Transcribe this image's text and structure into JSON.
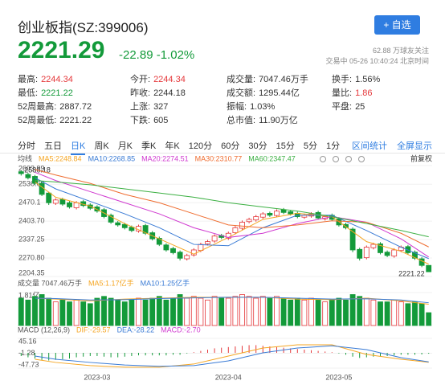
{
  "header": {
    "title": "创业板指(SZ:399006)",
    "button": "+ 自选",
    "price": "2221.29",
    "change": "-22.89",
    "change_pct": "-1.02%",
    "followers": "62.88 万球友关注",
    "status": "交易中 05-26 10:40:24 北京时间",
    "up_color": "#e5383b",
    "down_color": "#139a3a"
  },
  "stats": [
    [
      {
        "label": "最高:",
        "value": "2244.34",
        "color": "#e5383b"
      },
      {
        "label": "今开:",
        "value": "2244.34",
        "color": "#e5383b"
      },
      {
        "label": "成交量:",
        "value": "7047.46万手"
      },
      {
        "label": "换手:",
        "value": "1.56%"
      }
    ],
    [
      {
        "label": "最低:",
        "value": "2221.22",
        "color": "#139a3a"
      },
      {
        "label": "昨收:",
        "value": "2244.18"
      },
      {
        "label": "成交额:",
        "value": "1295.44亿"
      },
      {
        "label": "量比:",
        "value": "1.86",
        "color": "#e5383b"
      }
    ],
    [
      {
        "label": "52周最高:",
        "value": "2887.72"
      },
      {
        "label": "上涨:",
        "value": "327"
      },
      {
        "label": "振幅:",
        "value": "1.03%"
      },
      {
        "label": "平盘:",
        "value": "25"
      }
    ],
    [
      {
        "label": "52周最低:",
        "value": "2221.22"
      },
      {
        "label": "下跌:",
        "value": "605"
      },
      {
        "label": "总市值:",
        "value": "11.90万亿"
      }
    ]
  ],
  "tabs": {
    "items": [
      "分时",
      "五日",
      "日K",
      "周K",
      "月K",
      "季K",
      "年K",
      "120分",
      "60分",
      "30分",
      "15分",
      "5分",
      "1分"
    ],
    "active": 2,
    "links": [
      "区间统计",
      "全屏显示"
    ]
  },
  "chart_data": [
    {
      "type": "candlestick",
      "legend_title": "均线",
      "adjust": "前复权",
      "up_color": "#e5383b",
      "down_color": "#139a3a",
      "grid": true,
      "ylim": [
        2204.35,
        2603.99
      ],
      "yticks": [
        2603.99,
        {
          "value": 2536.6,
          "label": "2536.60"
        },
        {
          "value": 2470.15,
          "label": "2470.1"
        },
        {
          "value": 2403.7,
          "label": "2403.70"
        },
        2337.25,
        {
          "value": 2270.8,
          "label": "2270.80"
        },
        2204.35
      ],
      "candles": {
        "open": [
          2582,
          2572,
          2565,
          2540,
          2505,
          2468,
          2482,
          2470,
          2452,
          2474,
          2462,
          2455,
          2445,
          2425,
          2398,
          2392,
          2382,
          2368,
          2388,
          2362,
          2342,
          2318,
          2305,
          2292,
          2268,
          2282,
          2298,
          2322,
          2332,
          2352,
          2342,
          2362,
          2378,
          2402,
          2408,
          2418,
          2432,
          2424,
          2445,
          2438,
          2432,
          2418,
          2422,
          2435,
          2412,
          2425,
          2412,
          2392,
          2375,
          2302,
          2272,
          2308,
          2322,
          2292,
          2278,
          2298,
          2312,
          2292,
          2268,
          2244.34
        ],
        "high": [
          2586.18,
          2578,
          2570,
          2546,
          2510,
          2486,
          2488,
          2476,
          2476,
          2480,
          2468,
          2461,
          2451,
          2431,
          2404,
          2398,
          2388,
          2391,
          2394,
          2368,
          2348,
          2324,
          2311,
          2298,
          2286,
          2306,
          2326,
          2336,
          2356,
          2358,
          2366,
          2386,
          2406,
          2416,
          2426,
          2436,
          2438,
          2446,
          2451,
          2444,
          2438,
          2431,
          2436,
          2441,
          2426,
          2431,
          2418,
          2398,
          2381,
          2308,
          2316,
          2326,
          2328,
          2298,
          2306,
          2316,
          2318,
          2298,
          2274,
          2244.34
        ],
        "low": [
          2568,
          2554,
          2534,
          2494,
          2462,
          2462,
          2459,
          2449,
          2446,
          2454,
          2444,
          2434,
          2414,
          2394,
          2384,
          2374,
          2364,
          2362,
          2354,
          2334,
          2314,
          2294,
          2284,
          2262,
          2262,
          2276,
          2292,
          2316,
          2326,
          2339,
          2336,
          2356,
          2372,
          2396,
          2402,
          2412,
          2419,
          2418,
          2429,
          2424,
          2414,
          2412,
          2416,
          2409,
          2406,
          2404,
          2384,
          2374,
          2292,
          2262,
          2266,
          2302,
          2284,
          2274,
          2272,
          2292,
          2284,
          2264,
          2238,
          2221.22
        ],
        "close": [
          2575,
          2560,
          2540,
          2500,
          2470,
          2480,
          2465,
          2455,
          2470,
          2460,
          2450,
          2440,
          2420,
          2400,
          2390,
          2380,
          2370,
          2385,
          2360,
          2340,
          2320,
          2300,
          2290,
          2270,
          2280,
          2300,
          2320,
          2330,
          2350,
          2345,
          2360,
          2380,
          2400,
          2410,
          2420,
          2430,
          2425,
          2440,
          2435,
          2430,
          2420,
          2425,
          2430,
          2415,
          2420,
          2410,
          2390,
          2380,
          2300,
          2270,
          2310,
          2320,
          2290,
          2280,
          2300,
          2310,
          2290,
          2270,
          2244.18,
          2221.29
        ]
      },
      "series": [
        {
          "name": "MA5:2248.84",
          "color": "#f5a623",
          "x": [
            2,
            5,
            10,
            15,
            20,
            25,
            30,
            35,
            40,
            45,
            50,
            55,
            59
          ],
          "values": [
            2545,
            2490,
            2458,
            2395,
            2340,
            2285,
            2345,
            2410,
            2432,
            2420,
            2330,
            2295,
            2248.84
          ]
        },
        {
          "name": "MA10:2268.85",
          "color": "#3a7bd5",
          "x": [
            2,
            5,
            10,
            15,
            20,
            25,
            30,
            35,
            40,
            45,
            50,
            55,
            59
          ],
          "values": [
            2560,
            2520,
            2475,
            2430,
            2380,
            2320,
            2315,
            2380,
            2425,
            2425,
            2370,
            2310,
            2268.85
          ]
        },
        {
          "name": "MA20:2274.51",
          "color": "#d03ad0",
          "x": [
            2,
            5,
            10,
            15,
            20,
            25,
            30,
            35,
            40,
            45,
            50,
            55,
            59
          ],
          "values": [
            2580,
            2550,
            2510,
            2470,
            2430,
            2380,
            2345,
            2360,
            2395,
            2420,
            2400,
            2340,
            2274.51
          ]
        },
        {
          "name": "MA30:2310.77",
          "color": "#ef6c2f",
          "x": [
            2,
            5,
            10,
            15,
            20,
            25,
            30,
            35,
            40,
            45,
            50,
            55,
            59
          ],
          "values": [
            2590,
            2570,
            2540,
            2500,
            2470,
            2430,
            2390,
            2380,
            2390,
            2405,
            2400,
            2360,
            2310.77
          ]
        },
        {
          "name": "MA60:2347.47",
          "color": "#3cb043",
          "x": [
            2,
            5,
            10,
            15,
            20,
            25,
            30,
            35,
            40,
            45,
            50,
            55,
            59
          ],
          "values": [
            2550,
            2545,
            2535,
            2520,
            2505,
            2490,
            2470,
            2455,
            2440,
            2420,
            2395,
            2370,
            2347.47
          ]
        }
      ]
    },
    {
      "type": "volume",
      "title": "成交量 7047.46万手",
      "up_color": "#e5383b",
      "down_color": "#139a3a",
      "ylim": [
        0,
        1.81
      ],
      "yticks": [
        {
          "value": 1.81,
          "label": "1.81亿"
        }
      ],
      "values": [
        1.5,
        1.4,
        1.6,
        1.7,
        1.5,
        1.3,
        1.4,
        1.3,
        1.4,
        1.3,
        1.2,
        1.5,
        1.6,
        1.5,
        1.4,
        1.3,
        1.4,
        1.5,
        1.4,
        1.5,
        1.6,
        1.4,
        1.5,
        1.7,
        1.5,
        1.6,
        1.5,
        1.4,
        1.6,
        1.5,
        1.5,
        1.6,
        1.7,
        1.6,
        1.5,
        1.6,
        1.5,
        1.6,
        1.5,
        1.4,
        1.5,
        1.4,
        1.5,
        1.4,
        1.3,
        1.4,
        1.5,
        1.4,
        1.7,
        1.6,
        1.5,
        1.4,
        1.3,
        1.3,
        1.4,
        1.3,
        1.2,
        1.3,
        1.2,
        0.7047
      ],
      "series": [
        {
          "name": "MA5:1.17亿手",
          "color": "#f5a623",
          "x": [
            2,
            5,
            10,
            15,
            20,
            25,
            30,
            35,
            40,
            45,
            50,
            55,
            59
          ],
          "values": [
            1.5,
            1.45,
            1.35,
            1.45,
            1.5,
            1.55,
            1.55,
            1.55,
            1.45,
            1.42,
            1.5,
            1.35,
            1.17
          ]
        },
        {
          "name": "MA10:1.25亿手",
          "color": "#3a7bd5",
          "x": [
            2,
            5,
            10,
            15,
            20,
            25,
            30,
            35,
            40,
            45,
            50,
            55,
            59
          ],
          "values": [
            1.5,
            1.48,
            1.4,
            1.42,
            1.48,
            1.52,
            1.55,
            1.55,
            1.5,
            1.45,
            1.47,
            1.4,
            1.25
          ]
        }
      ]
    },
    {
      "type": "macd",
      "title": "MACD (12,26,9)",
      "up_color": "#e5383b",
      "down_color": "#139a3a",
      "ylim": [
        -47.73,
        45.16
      ],
      "yticks": [
        45.16,
        -1.28,
        -47.73
      ],
      "histogram": {
        "name": "MACD:-2.70",
        "color": "#d03ad0",
        "values": [
          -10,
          -14,
          -18,
          -22,
          -24,
          -22,
          -20,
          -18,
          -14,
          -12,
          -10,
          -10,
          -12,
          -14,
          -14,
          -12,
          -10,
          -8,
          -8,
          -8,
          -8,
          -8,
          -6,
          -6,
          -2,
          2,
          6,
          10,
          14,
          16,
          18,
          20,
          22,
          24,
          24,
          22,
          20,
          18,
          16,
          14,
          12,
          10,
          8,
          6,
          4,
          2,
          -2,
          -6,
          -12,
          -16,
          -14,
          -12,
          -12,
          -10,
          -8,
          -6,
          -6,
          -6,
          -5,
          -2.7
        ]
      },
      "series": [
        {
          "name": "DIF:-29.57",
          "color": "#f5a623",
          "x": [
            2,
            5,
            10,
            15,
            20,
            25,
            30,
            35,
            40,
            45,
            50,
            55,
            59
          ],
          "values": [
            -20,
            -30,
            -40,
            -45,
            -45,
            -35,
            -10,
            15,
            25,
            25,
            -5,
            -20,
            -29.57
          ]
        },
        {
          "name": "DEA:-28.22",
          "color": "#3a7bd5",
          "x": [
            2,
            5,
            10,
            15,
            20,
            25,
            30,
            35,
            40,
            45,
            50,
            55,
            59
          ],
          "values": [
            -10,
            -20,
            -30,
            -38,
            -42,
            -40,
            -25,
            0,
            15,
            22,
            10,
            -15,
            -28.22
          ]
        }
      ],
      "xlabels": [
        {
          "index": 11,
          "label": "2023-03"
        },
        {
          "index": 30,
          "label": "2023-04"
        },
        {
          "index": 46,
          "label": "2023-05"
        }
      ]
    }
  ]
}
